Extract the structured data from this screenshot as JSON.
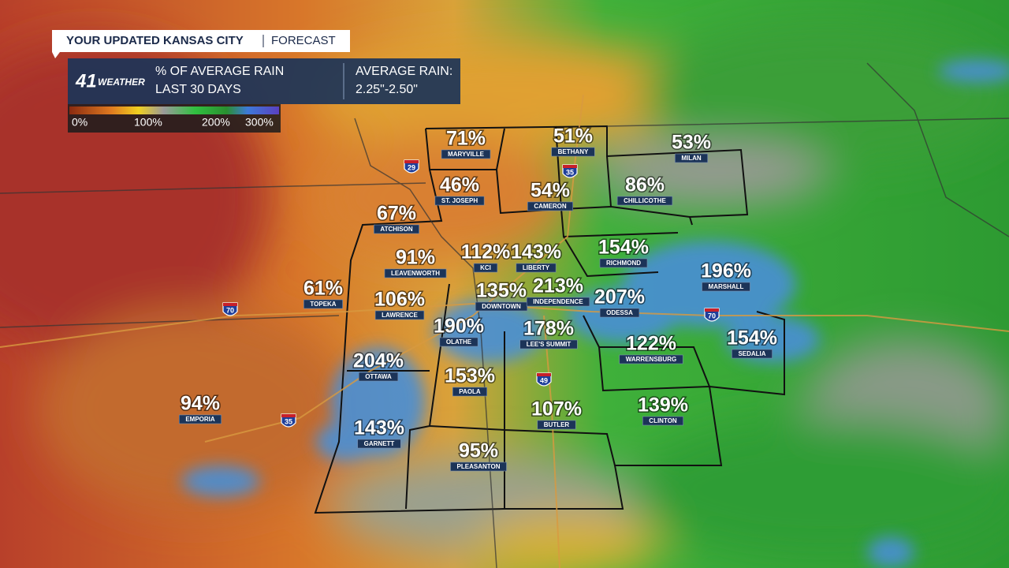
{
  "header": {
    "title": "YOUR UPDATED KANSAS CITY",
    "section": "FORECAST"
  },
  "logo": {
    "number": "41",
    "word": "WEATHER"
  },
  "panel": {
    "metric": "% OF AVERAGE RAIN",
    "period": "LAST 30 DAYS",
    "average_label": "AVERAGE RAIN:",
    "average_value": "2.25\"-2.50\""
  },
  "legend": {
    "labels": [
      "0%",
      "100%",
      "200%",
      "300%"
    ]
  },
  "cities": [
    {
      "name": "MARYVILLE",
      "value": "71%"
    },
    {
      "name": "BETHANY",
      "value": "51%"
    },
    {
      "name": "MILAN",
      "value": "53%"
    },
    {
      "name": "ST. JOSEPH",
      "value": "46%"
    },
    {
      "name": "CAMERON",
      "value": "54%"
    },
    {
      "name": "CHILLICOTHE",
      "value": "86%"
    },
    {
      "name": "ATCHISON",
      "value": "67%"
    },
    {
      "name": "LEAVENWORTH",
      "value": "91%"
    },
    {
      "name": "KCI",
      "value": "112%"
    },
    {
      "name": "LIBERTY",
      "value": "143%"
    },
    {
      "name": "RICHMOND",
      "value": "154%"
    },
    {
      "name": "MARSHALL",
      "value": "196%"
    },
    {
      "name": "TOPEKA",
      "value": "61%"
    },
    {
      "name": "LAWRENCE",
      "value": "106%"
    },
    {
      "name": "DOWNTOWN",
      "value": "135%"
    },
    {
      "name": "INDEPENDENCE",
      "value": "213%"
    },
    {
      "name": "ODESSA",
      "value": "207%"
    },
    {
      "name": "OLATHE",
      "value": "190%"
    },
    {
      "name": "LEE'S SUMMIT",
      "value": "178%"
    },
    {
      "name": "WARRENSBURG",
      "value": "122%"
    },
    {
      "name": "SEDALIA",
      "value": "154%"
    },
    {
      "name": "OTTAWA",
      "value": "204%"
    },
    {
      "name": "PAOLA",
      "value": "153%"
    },
    {
      "name": "EMPORIA",
      "value": "94%"
    },
    {
      "name": "BUTLER",
      "value": "107%"
    },
    {
      "name": "CLINTON",
      "value": "139%"
    },
    {
      "name": "GARNETT",
      "value": "143%"
    },
    {
      "name": "PLEASANTON",
      "value": "95%"
    }
  ],
  "highways": [
    "29",
    "35",
    "70",
    "70",
    "49",
    "35"
  ]
}
